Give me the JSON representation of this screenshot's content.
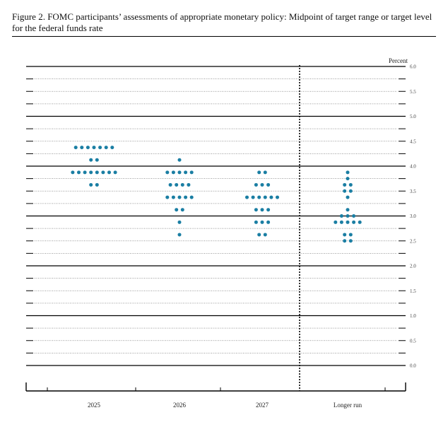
{
  "figure": {
    "title": "Figure 2.  FOMC participants’ assessments of appropriate monetary policy:  Midpoint of target range or target level for the federal funds rate"
  },
  "chart_data": {
    "type": "scatter",
    "ylabel": "Percent",
    "ylim": [
      0,
      6
    ],
    "yticks": [
      "0.0",
      "0.5",
      "1.0",
      "1.5",
      "2.0",
      "2.5",
      "3.0",
      "3.5",
      "4.0",
      "4.5",
      "5.0",
      "5.5",
      "6.0"
    ],
    "categories": [
      "2025",
      "2026",
      "2027",
      "Longer run"
    ],
    "dot_color": "#1a7ea3",
    "grid": true,
    "separator_before": "Longer run",
    "dots": [
      {
        "category": "2025",
        "levels": [
          {
            "rate": 4.375,
            "count": 7
          },
          {
            "rate": 4.125,
            "count": 2
          },
          {
            "rate": 3.875,
            "count": 8
          },
          {
            "rate": 3.625,
            "count": 2
          }
        ]
      },
      {
        "category": "2026",
        "levels": [
          {
            "rate": 4.125,
            "count": 1
          },
          {
            "rate": 3.875,
            "count": 5
          },
          {
            "rate": 3.625,
            "count": 4
          },
          {
            "rate": 3.375,
            "count": 5
          },
          {
            "rate": 3.125,
            "count": 2
          },
          {
            "rate": 2.875,
            "count": 1
          },
          {
            "rate": 2.625,
            "count": 1
          }
        ]
      },
      {
        "category": "2027",
        "levels": [
          {
            "rate": 3.875,
            "count": 2
          },
          {
            "rate": 3.625,
            "count": 3
          },
          {
            "rate": 3.375,
            "count": 6
          },
          {
            "rate": 3.125,
            "count": 3
          },
          {
            "rate": 2.875,
            "count": 3
          },
          {
            "rate": 2.625,
            "count": 2
          }
        ]
      },
      {
        "category": "Longer run",
        "levels": [
          {
            "rate": 3.875,
            "count": 1
          },
          {
            "rate": 3.75,
            "count": 1
          },
          {
            "rate": 3.625,
            "count": 2
          },
          {
            "rate": 3.5,
            "count": 2
          },
          {
            "rate": 3.375,
            "count": 1
          },
          {
            "rate": 3.125,
            "count": 1
          },
          {
            "rate": 3.0,
            "count": 3
          },
          {
            "rate": 2.875,
            "count": 5
          },
          {
            "rate": 2.625,
            "count": 2
          },
          {
            "rate": 2.5,
            "count": 2
          }
        ]
      }
    ]
  }
}
